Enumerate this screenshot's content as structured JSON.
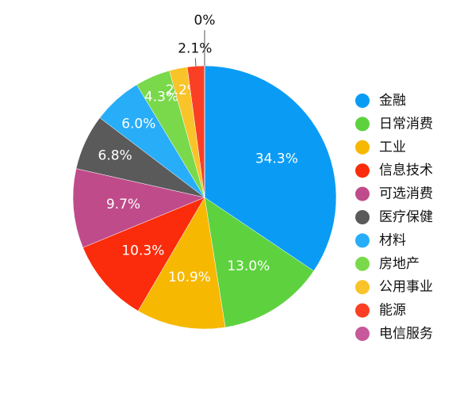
{
  "chart_data": {
    "type": "pie",
    "categories": [
      "金融",
      "日常消费",
      "工业",
      "信息技术",
      "可选消费",
      "医疗保健",
      "材料",
      "房地产",
      "公用事业",
      "能源",
      "电信服务"
    ],
    "values": [
      34.3,
      13.0,
      10.9,
      10.3,
      9.7,
      6.8,
      6.0,
      4.3,
      2.2,
      2.1,
      0
    ],
    "value_labels": [
      "34.3%",
      "13.0%",
      "10.9%",
      "10.3%",
      "9.7%",
      "6.8%",
      "6.0%",
      "4.3%",
      "2.2%",
      "2.1%",
      "0%"
    ],
    "colors": [
      "#0a9cf5",
      "#5dd23e",
      "#f6b800",
      "#fa2c0b",
      "#c04b8a",
      "#5a5a5a",
      "#28adf8",
      "#79d94a",
      "#f8c42a",
      "#fb3f24",
      "#c7589a"
    ],
    "legend": "right"
  }
}
